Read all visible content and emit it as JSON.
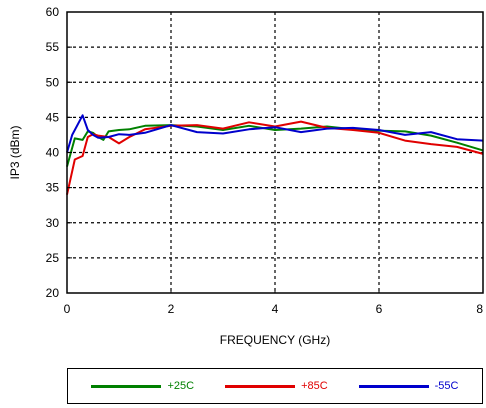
{
  "chart_data": {
    "type": "line",
    "xlabel": "FREQUENCY (GHz)",
    "ylabel": "IP3 (dBm)",
    "xlim": [
      0,
      8
    ],
    "ylim": [
      20,
      60
    ],
    "xticks": [
      0,
      2,
      4,
      6,
      8
    ],
    "yticks": [
      20,
      25,
      30,
      35,
      40,
      45,
      50,
      55,
      60
    ],
    "grid": true,
    "legend_position": "bottom",
    "series": [
      {
        "name": "+25C",
        "color": "#008000",
        "x": [
          0,
          0.15,
          0.3,
          0.4,
          0.5,
          0.6,
          0.7,
          0.8,
          1.0,
          1.2,
          1.5,
          2.0,
          2.5,
          3.0,
          3.5,
          4.0,
          4.5,
          5.0,
          5.5,
          6.0,
          6.5,
          7.0,
          7.5,
          8.0
        ],
        "y": [
          38,
          42,
          41.8,
          43,
          42.8,
          42.2,
          41.8,
          43,
          43.2,
          43.3,
          43.8,
          43.9,
          43.7,
          43.2,
          43.8,
          43.2,
          43.4,
          43.7,
          43.3,
          43.1,
          43,
          42.4,
          41.4,
          40.3
        ]
      },
      {
        "name": "+85C",
        "color": "#e00000",
        "x": [
          0,
          0.15,
          0.3,
          0.4,
          0.5,
          0.6,
          0.8,
          1.0,
          1.2,
          1.5,
          2.0,
          2.5,
          3.0,
          3.5,
          4.0,
          4.5,
          5.0,
          5.5,
          6.0,
          6.5,
          7.0,
          7.5,
          8.0
        ],
        "y": [
          34,
          39,
          39.5,
          42.2,
          42.6,
          42.4,
          42.2,
          41.3,
          42.2,
          43.3,
          43.8,
          43.9,
          43.4,
          44.3,
          43.7,
          44.4,
          43.5,
          43.2,
          42.8,
          41.7,
          41.2,
          40.8,
          39.8
        ]
      },
      {
        "name": "-55C",
        "color": "#0000cc",
        "x": [
          0,
          0.1,
          0.3,
          0.4,
          0.5,
          0.6,
          0.8,
          1.0,
          1.2,
          1.5,
          2.0,
          2.5,
          3.0,
          3.5,
          4.0,
          4.5,
          5.0,
          5.5,
          6.0,
          6.5,
          7.0,
          7.5,
          8.0
        ],
        "y": [
          40,
          42.5,
          45.3,
          43.2,
          42.5,
          42.1,
          42.2,
          42.6,
          42.5,
          42.8,
          43.9,
          42.9,
          42.7,
          43.3,
          43.6,
          42.9,
          43.4,
          43.5,
          43.2,
          42.5,
          42.9,
          41.9,
          41.7
        ]
      }
    ]
  }
}
